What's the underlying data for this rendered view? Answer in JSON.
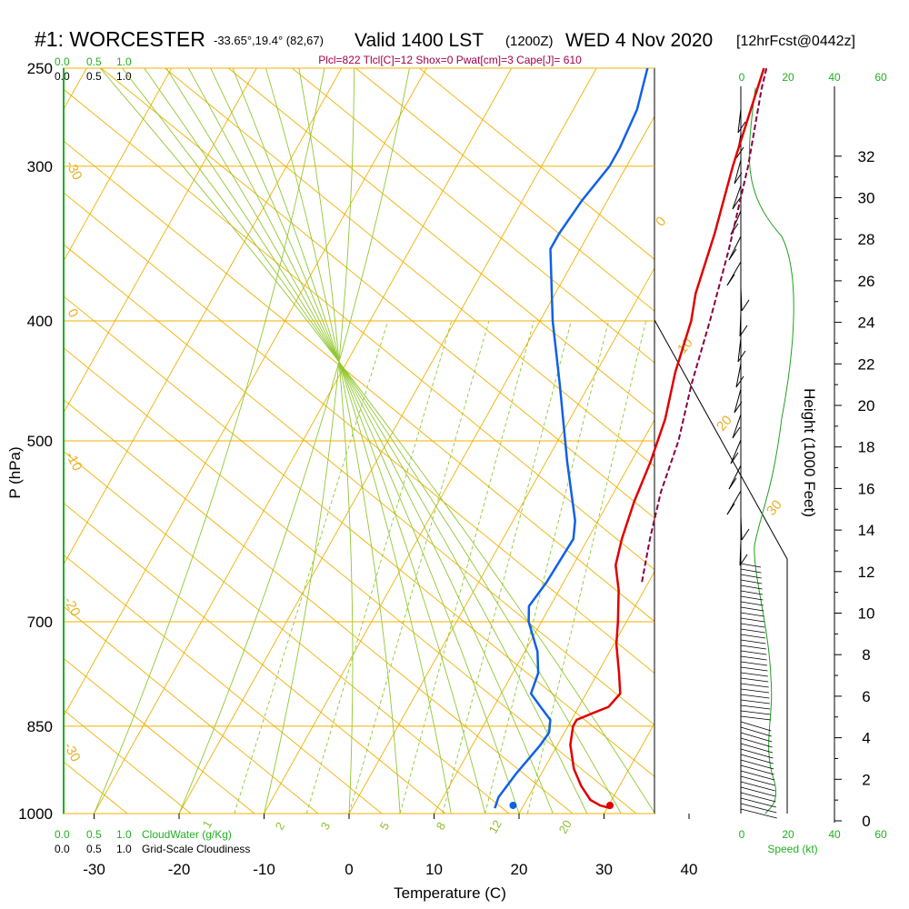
{
  "title": {
    "station": "#1: WORCESTER",
    "coords": "-33.65°,19.4° (82,67)",
    "valid": "Valid 1400 LST",
    "zulu": "(1200Z)",
    "date": "WED 4 Nov 2020",
    "forecast": "[12hrFcst@0442z]"
  },
  "parcel_info": "Plcl=822 Tlcl[C]=12 Shox=0 Pwat[cm]=3 Cape[J]= 610",
  "colors": {
    "temperature": "#e00000",
    "dewpoint": "#1060e8",
    "parcel": "#880040",
    "isotherm": "#f0b000",
    "dry_adiabat": "#f0b000",
    "moist_adiabat": "#90c830",
    "mixing_ratio": "#90c830",
    "speed": "#20a020",
    "green_label": "#20b020"
  },
  "top_scale": {
    "cloudwater": [
      "0.0",
      "0.5",
      "1.0"
    ],
    "cloudiness": [
      "0.0",
      "0.5",
      "1.0"
    ]
  },
  "bottom_scale": {
    "cloudwater": [
      "0.0",
      "0.5",
      "1.0"
    ],
    "cloudwater_label": "CloudWater (g/Kg)",
    "cloudiness": [
      "0.0",
      "0.5",
      "1.0"
    ],
    "cloudiness_label": "Grid-Scale Cloudiness"
  },
  "speed_axis": {
    "top_ticks": [
      "0",
      "20",
      "40",
      "60"
    ],
    "bottom_ticks": [
      "0",
      "20",
      "40",
      "60"
    ],
    "label": "Speed (kt)"
  },
  "chart_data": {
    "type": "skew-t",
    "xlabel": "Temperature (C)",
    "ylabel": "P (hPa)",
    "y2label": "Height (1000 Feet)",
    "temperature_ticks": [
      "-30",
      "-20",
      "-10",
      "0",
      "10",
      "20",
      "30",
      "40"
    ],
    "pressure_ticks": [
      "250",
      "300",
      "400",
      "500",
      "700",
      "850",
      "1000"
    ],
    "height_ticks": [
      "0",
      "2",
      "4",
      "6",
      "8",
      "10",
      "12",
      "14",
      "16",
      "18",
      "20",
      "22",
      "24",
      "26",
      "28",
      "30",
      "32"
    ],
    "temperature_profile": [
      {
        "p": 990,
        "t": 30.4
      },
      {
        "p": 985,
        "t": 29
      },
      {
        "p": 975,
        "t": 27.5
      },
      {
        "p": 950,
        "t": 25.5
      },
      {
        "p": 920,
        "t": 23.5
      },
      {
        "p": 880,
        "t": 21.5
      },
      {
        "p": 850,
        "t": 20.6
      },
      {
        "p": 840,
        "t": 20.6
      },
      {
        "p": 830,
        "t": 22
      },
      {
        "p": 820,
        "t": 23.5
      },
      {
        "p": 800,
        "t": 24
      },
      {
        "p": 770,
        "t": 22.5
      },
      {
        "p": 730,
        "t": 20.3
      },
      {
        "p": 700,
        "t": 19
      },
      {
        "p": 660,
        "t": 17
      },
      {
        "p": 630,
        "t": 15
      },
      {
        "p": 600,
        "t": 14
      },
      {
        "p": 560,
        "t": 13
      },
      {
        "p": 520,
        "t": 12.3
      },
      {
        "p": 480,
        "t": 11.2
      },
      {
        "p": 440,
        "t": 9.3
      },
      {
        "p": 400,
        "t": 7.8
      },
      {
        "p": 380,
        "t": 6.5
      },
      {
        "p": 340,
        "t": 4.8
      },
      {
        "p": 300,
        "t": 2.5
      },
      {
        "p": 260,
        "t": 0.3
      },
      {
        "p": 250,
        "t": -0.3
      }
    ],
    "dewpoint_profile": [
      {
        "p": 990,
        "t": 16.8
      },
      {
        "p": 970,
        "t": 16.5
      },
      {
        "p": 930,
        "t": 17
      },
      {
        "p": 880,
        "t": 18
      },
      {
        "p": 860,
        "t": 18.2
      },
      {
        "p": 840,
        "t": 17.5
      },
      {
        "p": 820,
        "t": 15.5
      },
      {
        "p": 800,
        "t": 13.5
      },
      {
        "p": 770,
        "t": 13
      },
      {
        "p": 740,
        "t": 11.5
      },
      {
        "p": 700,
        "t": 8.5
      },
      {
        "p": 680,
        "t": 7.5
      },
      {
        "p": 650,
        "t": 8
      },
      {
        "p": 600,
        "t": 8.3
      },
      {
        "p": 580,
        "t": 7.3
      },
      {
        "p": 520,
        "t": 2.5
      },
      {
        "p": 450,
        "t": -3.5
      },
      {
        "p": 400,
        "t": -8.5
      },
      {
        "p": 350,
        "t": -13.5
      },
      {
        "p": 340,
        "t": -13.5
      },
      {
        "p": 320,
        "t": -13
      },
      {
        "p": 300,
        "t": -12
      },
      {
        "p": 290,
        "t": -12
      },
      {
        "p": 270,
        "t": -12.5
      },
      {
        "p": 250,
        "t": -14
      }
    ],
    "parcel_profile": [
      {
        "p": 650,
        "t": 19.2
      },
      {
        "p": 600,
        "t": 17.3
      },
      {
        "p": 550,
        "t": 15.5
      },
      {
        "p": 500,
        "t": 14.2
      },
      {
        "p": 450,
        "t": 12
      },
      {
        "p": 400,
        "t": 10
      },
      {
        "p": 350,
        "t": 7.5
      },
      {
        "p": 300,
        "t": 4.3
      },
      {
        "p": 260,
        "t": 0.8
      },
      {
        "p": 250,
        "t": 0
      }
    ],
    "surface_temperature": 30.7,
    "surface_dewpoint": 19.3,
    "isotherm_labels": [
      "-30",
      "-20",
      "-10",
      "0",
      "10",
      "20",
      "30",
      "0",
      "10",
      "20",
      "30"
    ],
    "mixing_ratio_labels": [
      "1",
      "2",
      "3",
      "5",
      "8",
      "12",
      "20"
    ]
  }
}
